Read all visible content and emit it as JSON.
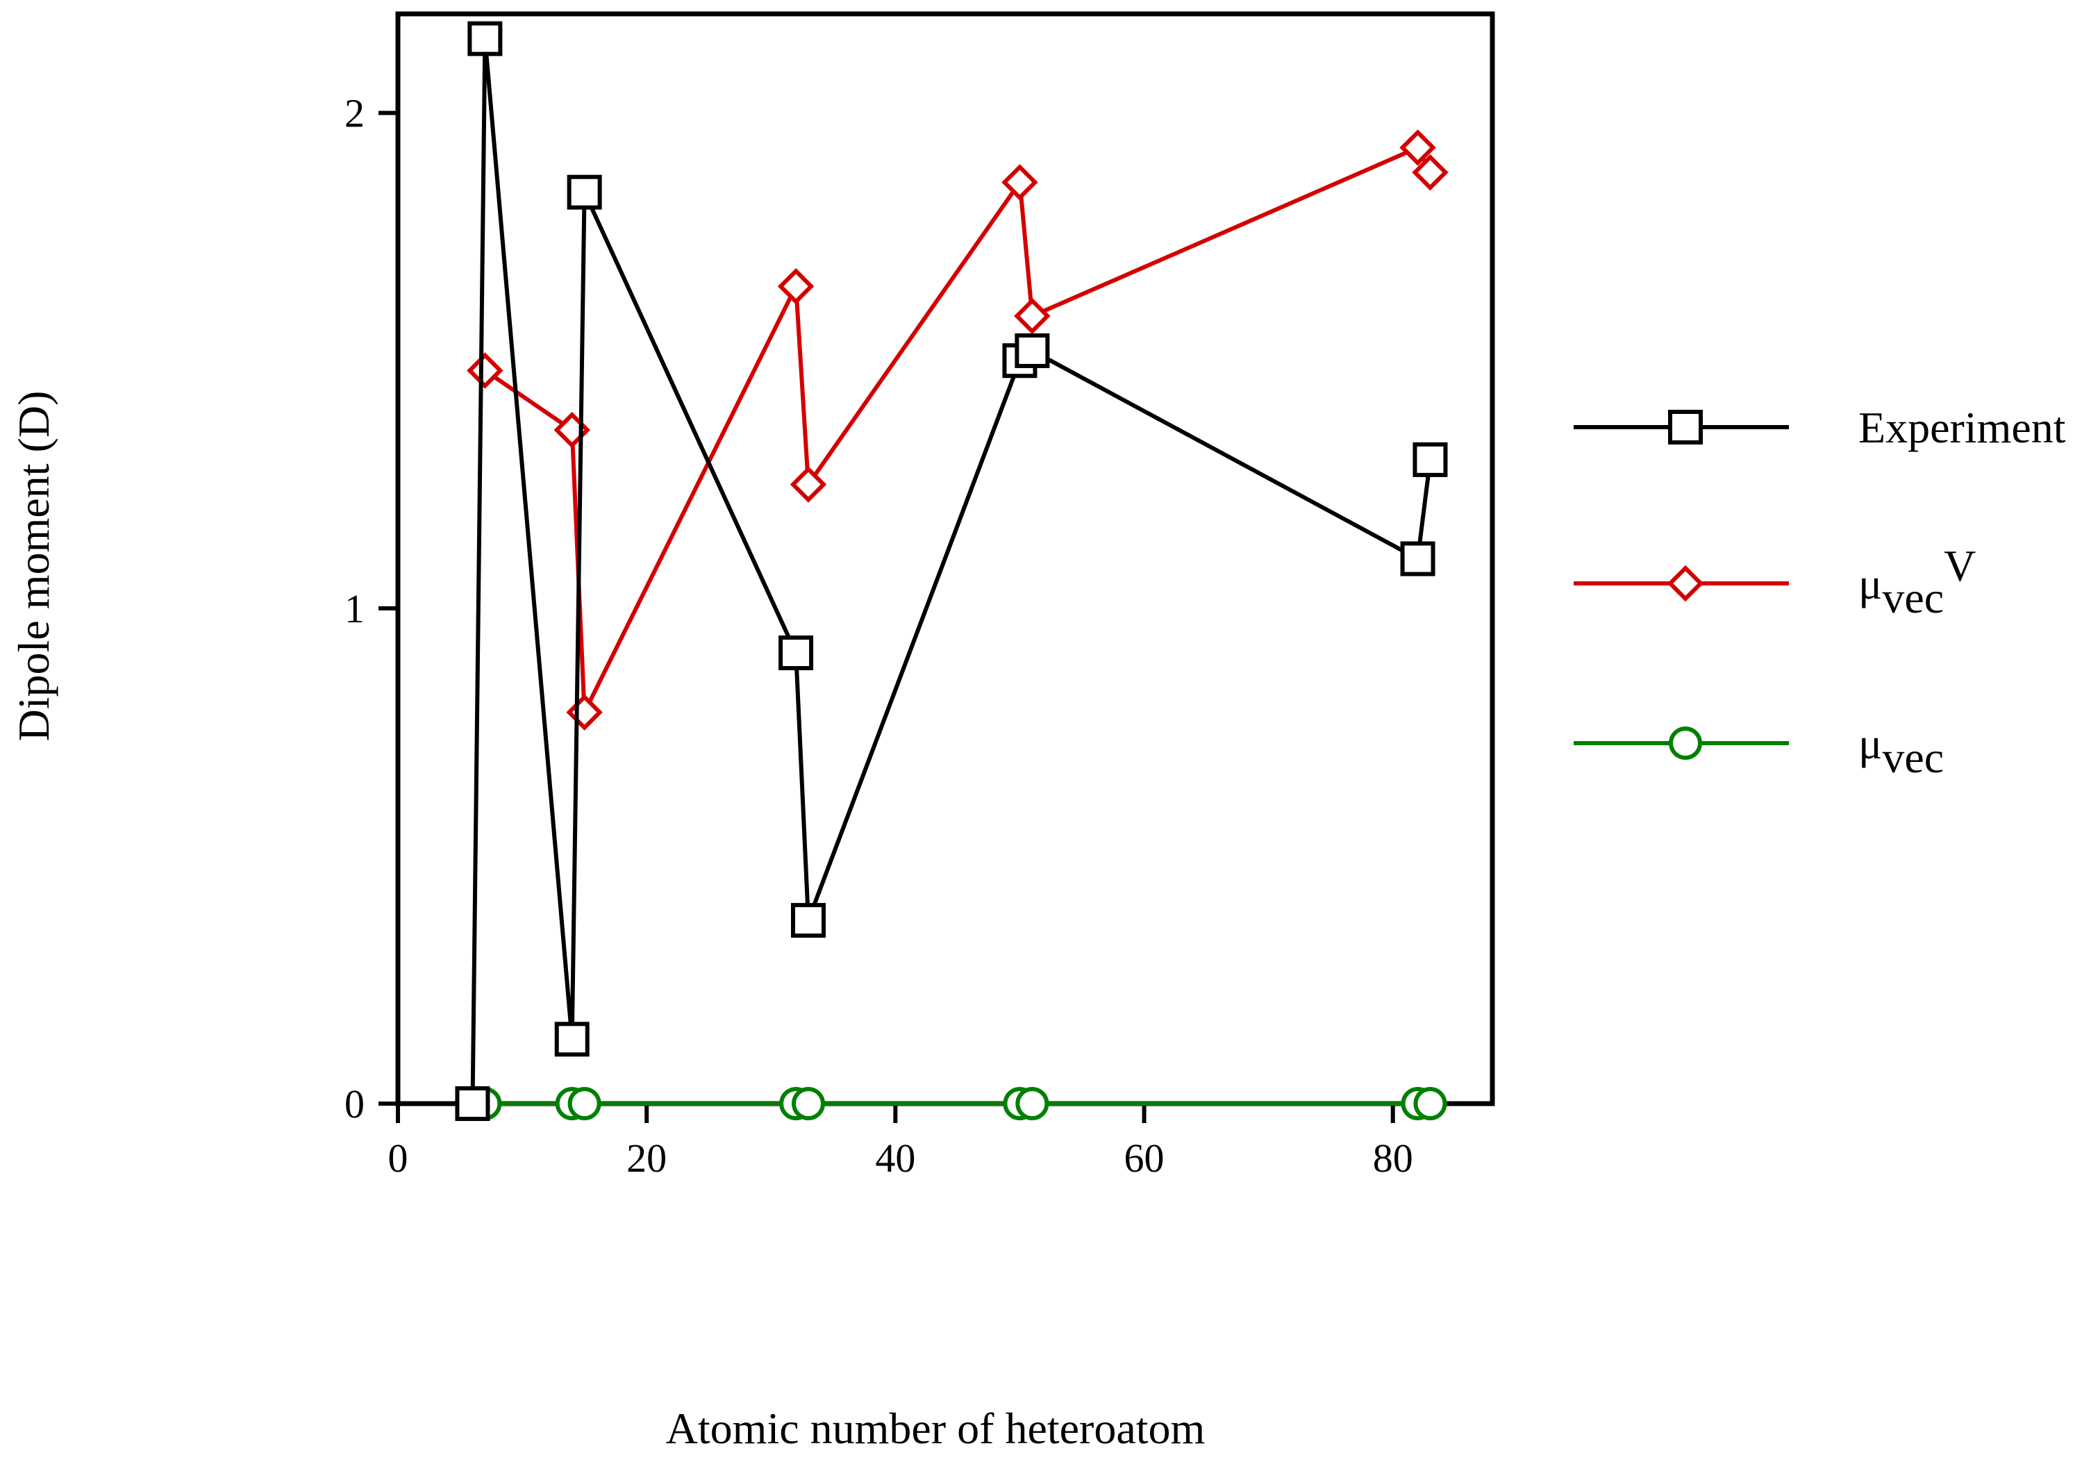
{
  "chart_data": {
    "type": "line",
    "title": "",
    "xlabel": "Atomic number of heteroatom",
    "ylabel": "Dipole moment (D)",
    "xlim": [
      0,
      88
    ],
    "ylim": [
      0,
      2.2
    ],
    "xticks": [
      0,
      20,
      40,
      60,
      80
    ],
    "yticks": [
      0,
      1,
      2
    ],
    "xtick_labels": [
      "0",
      "20",
      "40",
      "60",
      "80"
    ],
    "ytick_labels": [
      "0",
      "1",
      "2"
    ],
    "grid": false,
    "legend_position": "right",
    "series": [
      {
        "name": "Experiment",
        "legend_label": "Experiment",
        "marker": "square",
        "color": "#000000",
        "x": [
          6,
          7,
          14,
          15,
          32,
          33,
          50,
          51,
          82,
          83
        ],
        "y": [
          0.0,
          2.15,
          0.13,
          1.84,
          0.91,
          0.37,
          1.5,
          1.52,
          1.1,
          1.3
        ]
      },
      {
        "name": "μvec V",
        "legend_base": "μ",
        "legend_sub": "vec",
        "legend_sup": "V",
        "marker": "diamond",
        "color": "#d40000",
        "x": [
          7,
          14,
          15,
          32,
          33,
          50,
          51,
          82,
          83
        ],
        "y": [
          1.48,
          1.36,
          0.79,
          1.65,
          1.25,
          1.86,
          1.59,
          1.93,
          1.88
        ]
      },
      {
        "name": "μvec",
        "legend_base": "μ",
        "legend_sub": "vec",
        "marker": "circle",
        "color": "#008000",
        "x": [
          7,
          14,
          15,
          32,
          33,
          50,
          51,
          82,
          83
        ],
        "y": [
          0,
          0,
          0,
          0,
          0,
          0,
          0,
          0,
          0
        ]
      }
    ]
  }
}
